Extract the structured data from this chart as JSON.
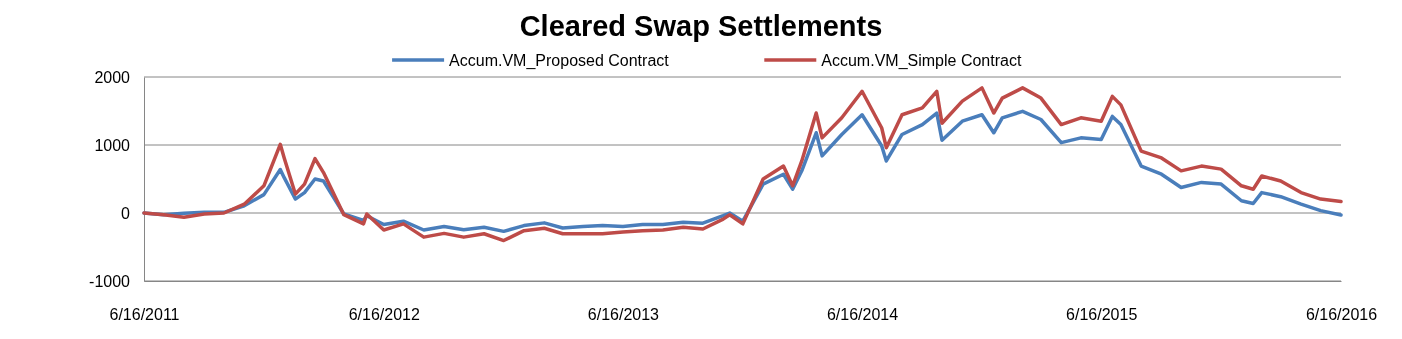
{
  "chart_data": {
    "type": "line",
    "title": "Cleared Swap Settlements",
    "x": [
      "2011-06-16",
      "2011-07-16",
      "2011-08-16",
      "2011-09-16",
      "2011-10-16",
      "2011-11-16",
      "2011-12-16",
      "2012-01-10",
      "2012-01-16",
      "2012-02-02",
      "2012-02-16",
      "2012-03-03",
      "2012-03-16",
      "2012-04-16",
      "2012-05-16",
      "2012-05-21",
      "2012-06-16",
      "2012-07-16",
      "2012-08-16",
      "2012-09-16",
      "2012-10-16",
      "2012-11-16",
      "2012-12-16",
      "2013-01-16",
      "2013-02-16",
      "2013-03-16",
      "2013-04-16",
      "2013-05-16",
      "2013-06-16",
      "2013-07-16",
      "2013-08-16",
      "2013-09-16",
      "2013-10-16",
      "2013-11-16",
      "2013-11-26",
      "2013-12-16",
      "2014-01-16",
      "2014-02-16",
      "2014-03-02",
      "2014-03-16",
      "2014-04-07",
      "2014-04-16",
      "2014-05-16",
      "2014-06-16",
      "2014-07-16",
      "2014-07-23",
      "2014-08-16",
      "2014-09-16",
      "2014-10-08",
      "2014-10-16",
      "2014-11-16",
      "2014-12-16",
      "2015-01-03",
      "2015-01-16",
      "2015-02-16",
      "2015-03-16",
      "2015-04-16",
      "2015-05-16",
      "2015-06-16",
      "2015-07-03",
      "2015-07-16",
      "2015-08-16",
      "2015-09-16",
      "2015-10-16",
      "2015-11-16",
      "2015-12-16",
      "2016-01-16",
      "2016-02-03",
      "2016-02-16",
      "2016-03-16",
      "2016-04-16",
      "2016-05-16",
      "2016-06-16"
    ],
    "series": [
      {
        "name": "Accum.VM_Proposed Contract",
        "color": "#4a7ebb",
        "values": [
          0,
          -25,
          -5,
          10,
          10,
          107,
          270,
          640,
          520,
          205,
          300,
          500,
          470,
          -15,
          -110,
          -40,
          -170,
          -120,
          -250,
          -200,
          -245,
          -210,
          -270,
          -185,
          -145,
          -220,
          -200,
          -185,
          -200,
          -170,
          -170,
          -135,
          -150,
          -40,
          0,
          -120,
          425,
          570,
          350,
          620,
          1180,
          840,
          1155,
          1445,
          985,
          765,
          1155,
          1300,
          1470,
          1070,
          1350,
          1445,
          1180,
          1400,
          1495,
          1375,
          1035,
          1105,
          1080,
          1420,
          1300,
          690,
          570,
          375,
          450,
          425,
          180,
          140,
          300,
          240,
          130,
          35,
          -30
        ]
      },
      {
        "name": "Accum.VM_Simple Contract",
        "color": "#be4b48",
        "values": [
          0,
          -25,
          -63,
          -15,
          0,
          130,
          400,
          1010,
          810,
          278,
          425,
          800,
          595,
          -25,
          -160,
          -15,
          -250,
          -160,
          -355,
          -300,
          -355,
          -305,
          -405,
          -260,
          -225,
          -305,
          -305,
          -305,
          -280,
          -260,
          -250,
          -210,
          -235,
          -90,
          -25,
          -160,
          500,
          690,
          400,
          765,
          1470,
          1105,
          1400,
          1790,
          1250,
          960,
          1445,
          1545,
          1790,
          1320,
          1645,
          1840,
          1470,
          1690,
          1840,
          1690,
          1300,
          1400,
          1350,
          1715,
          1590,
          910,
          810,
          620,
          690,
          645,
          400,
          350,
          545,
          470,
          300,
          205,
          170
        ]
      }
    ],
    "xlim": [
      "2011-06-16",
      "2016-06-16"
    ],
    "xticks": [
      {
        "value": "2011-06-16",
        "label": "6/16/2011"
      },
      {
        "value": "2012-06-16",
        "label": "6/16/2012"
      },
      {
        "value": "2013-06-16",
        "label": "6/16/2013"
      },
      {
        "value": "2014-06-16",
        "label": "6/16/2014"
      },
      {
        "value": "2015-06-16",
        "label": "6/16/2015"
      },
      {
        "value": "2016-06-16",
        "label": "6/16/2016"
      }
    ],
    "ylim": [
      -1000,
      2000
    ],
    "yticks": [
      -1000,
      0,
      1000,
      2000
    ],
    "grid": "y",
    "legend": "top",
    "line_style": "solid",
    "marker": "none"
  }
}
